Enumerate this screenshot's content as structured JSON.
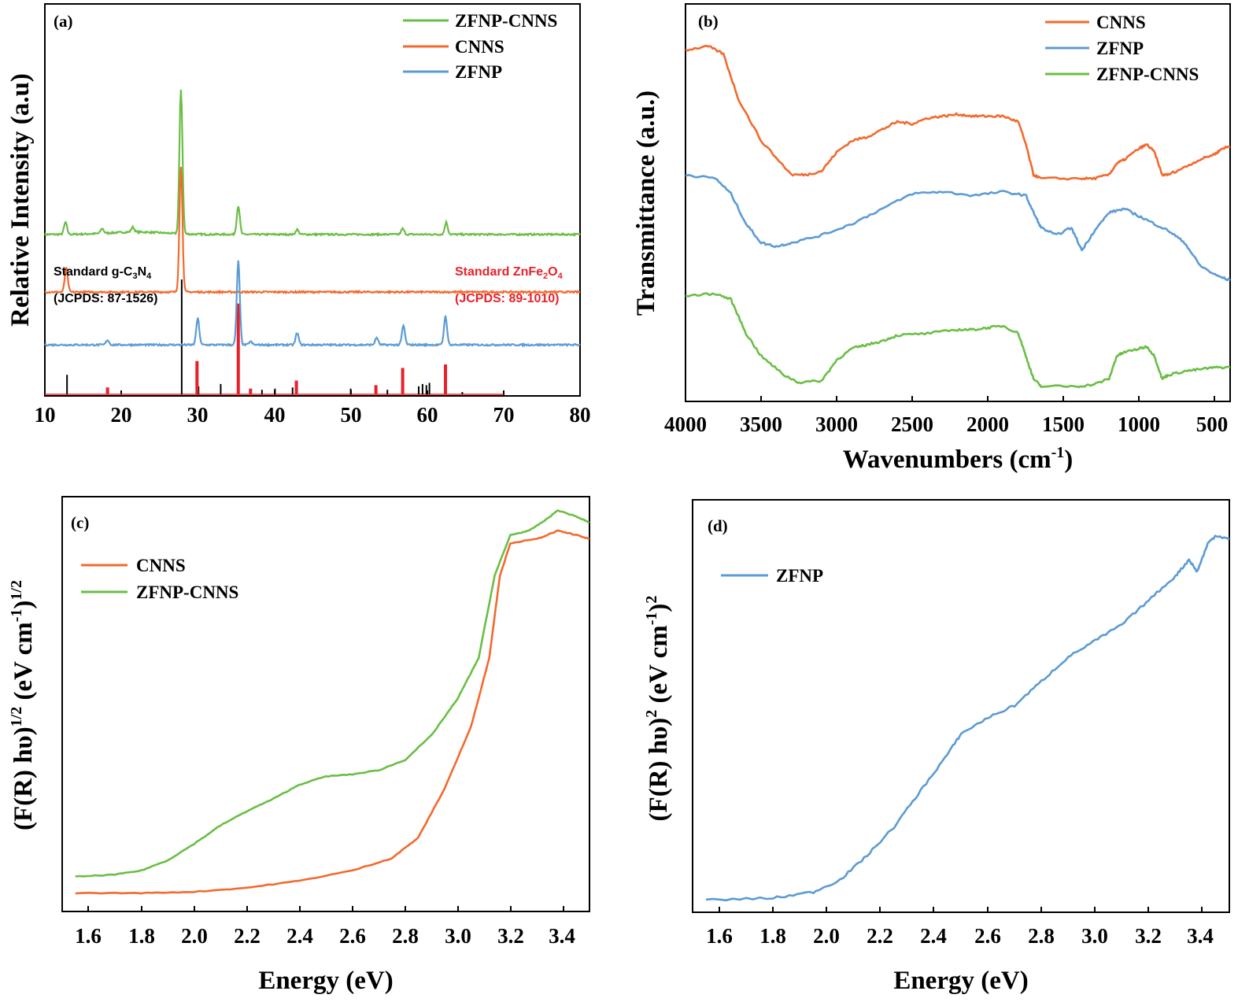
{
  "chart_data": [
    {
      "panel": "(a)",
      "type": "line",
      "xlabel": "",
      "ylabel": "Relative Intensity (a.u)",
      "xlim": [
        10,
        80
      ],
      "xticks": [
        "10",
        "20",
        "30",
        "40",
        "50",
        "60",
        "70",
        "80"
      ],
      "colors": {
        "ZFNP-CNNS": "#6ABE45",
        "CNNS": "#F26A2E",
        "ZFNP": "#5B9BD5",
        "std_gC3N4": "#000000",
        "std_ZnFe2O4": "#E8202A"
      },
      "legend": [
        "ZFNP-CNNS",
        "CNNS",
        "ZFNP"
      ],
      "series": [
        {
          "name": "ZFNP-CNNS",
          "baseline": 3.2,
          "peaks": [
            [
              12.7,
              0.25
            ],
            [
              17.5,
              0.1
            ],
            [
              21.5,
              0.1
            ],
            [
              27.8,
              3.0
            ],
            [
              35.3,
              0.6
            ],
            [
              43.0,
              0.1
            ],
            [
              56.8,
              0.12
            ],
            [
              62.5,
              0.25
            ]
          ]
        },
        {
          "name": "CNNS",
          "baseline": 2.0,
          "peaks": [
            [
              12.8,
              0.5
            ],
            [
              27.8,
              2.6
            ]
          ]
        },
        {
          "name": "ZFNP",
          "baseline": 0.9,
          "peaks": [
            [
              18.2,
              0.1
            ],
            [
              30.0,
              0.55
            ],
            [
              35.3,
              1.75
            ],
            [
              36.9,
              0.07
            ],
            [
              43.0,
              0.25
            ],
            [
              53.4,
              0.15
            ],
            [
              56.9,
              0.4
            ],
            [
              62.4,
              0.6
            ]
          ]
        }
      ],
      "reference_gC3N4": {
        "label_prefix": "Standard g-C",
        "sub1": "3",
        "mid": "N",
        "sub2": "4",
        "card": "(JCPDS: 87-1526)",
        "lines": [
          [
            12.9,
            0.17
          ],
          [
            27.9,
            1.0
          ],
          [
            30.1,
            0.07
          ],
          [
            33.0,
            0.09
          ],
          [
            35.3,
            0.05
          ],
          [
            38.4,
            0.04
          ],
          [
            40.1,
            0.05
          ],
          [
            42.4,
            0.06
          ],
          [
            50.0,
            0.05
          ],
          [
            54.8,
            0.04
          ],
          [
            58.9,
            0.07
          ],
          [
            59.4,
            0.09
          ],
          [
            59.9,
            0.08
          ],
          [
            60.3,
            0.1
          ],
          [
            64.6,
            0.02
          ]
        ]
      },
      "reference_ZnFe2O4": {
        "label_prefix": "Standard ZnFe",
        "sub1": "2",
        "mid": "O",
        "sub2": "4",
        "card": "(JCPDS: 89-1010)",
        "lines": [
          [
            18.2,
            0.06
          ],
          [
            29.9,
            0.29
          ],
          [
            35.3,
            0.79
          ],
          [
            36.9,
            0.05
          ],
          [
            42.9,
            0.12
          ],
          [
            53.3,
            0.08
          ],
          [
            56.8,
            0.23
          ],
          [
            62.4,
            0.26
          ]
        ]
      }
    },
    {
      "panel": "(b)",
      "type": "line",
      "xlabel_base": "Wavenumbers (cm",
      "xlabel_sup": "-1",
      "xlabel_close": ")",
      "ylabel": "Transmittance (a.u.)",
      "xlim": [
        4000,
        400
      ],
      "xticks": [
        "4000",
        "3500",
        "3000",
        "2500",
        "2000",
        "1500",
        "1000",
        "500"
      ],
      "colors": {
        "CNNS": "#F26A2E",
        "ZFNP": "#5B9BD5",
        "ZFNP-CNNS": "#6ABE45"
      },
      "legend": [
        "CNNS",
        "ZFNP",
        "ZFNP-CNNS"
      ],
      "series": [
        {
          "name": "CNNS",
          "points": [
            [
              4000,
              0.93
            ],
            [
              3850,
              0.94
            ],
            [
              3750,
              0.92
            ],
            [
              3650,
              0.8
            ],
            [
              3500,
              0.69
            ],
            [
              3300,
              0.6
            ],
            [
              3200,
              0.6
            ],
            [
              3100,
              0.61
            ],
            [
              3000,
              0.66
            ],
            [
              2900,
              0.69
            ],
            [
              2800,
              0.7
            ],
            [
              2700,
              0.72
            ],
            [
              2600,
              0.74
            ],
            [
              2500,
              0.735
            ],
            [
              2400,
              0.75
            ],
            [
              2300,
              0.755
            ],
            [
              2200,
              0.76
            ],
            [
              2100,
              0.755
            ],
            [
              2000,
              0.755
            ],
            [
              1900,
              0.755
            ],
            [
              1800,
              0.74
            ],
            [
              1750,
              0.68
            ],
            [
              1700,
              0.6
            ],
            [
              1650,
              0.59
            ],
            [
              1400,
              0.59
            ],
            [
              1300,
              0.59
            ],
            [
              1200,
              0.6
            ],
            [
              1150,
              0.63
            ],
            [
              1100,
              0.64
            ],
            [
              1000,
              0.67
            ],
            [
              950,
              0.68
            ],
            [
              900,
              0.66
            ],
            [
              850,
              0.6
            ],
            [
              810,
              0.6
            ],
            [
              700,
              0.62
            ],
            [
              600,
              0.64
            ],
            [
              500,
              0.655
            ],
            [
              450,
              0.67
            ],
            [
              400,
              0.675
            ]
          ]
        },
        {
          "name": "ZFNP",
          "points": [
            [
              4000,
              0.6
            ],
            [
              3800,
              0.59
            ],
            [
              3700,
              0.55
            ],
            [
              3600,
              0.47
            ],
            [
              3500,
              0.42
            ],
            [
              3400,
              0.41
            ],
            [
              3300,
              0.42
            ],
            [
              3100,
              0.44
            ],
            [
              2900,
              0.47
            ],
            [
              2700,
              0.51
            ],
            [
              2500,
              0.55
            ],
            [
              2300,
              0.555
            ],
            [
              2100,
              0.545
            ],
            [
              1900,
              0.555
            ],
            [
              1750,
              0.545
            ],
            [
              1700,
              0.5
            ],
            [
              1650,
              0.46
            ],
            [
              1550,
              0.44
            ],
            [
              1450,
              0.46
            ],
            [
              1380,
              0.4
            ],
            [
              1300,
              0.45
            ],
            [
              1200,
              0.5
            ],
            [
              1100,
              0.51
            ],
            [
              1000,
              0.49
            ],
            [
              900,
              0.47
            ],
            [
              800,
              0.45
            ],
            [
              700,
              0.42
            ],
            [
              600,
              0.36
            ],
            [
              500,
              0.335
            ],
            [
              400,
              0.32
            ]
          ]
        },
        {
          "name": "ZFNP-CNNS",
          "points": [
            [
              4000,
              0.28
            ],
            [
              3800,
              0.285
            ],
            [
              3700,
              0.27
            ],
            [
              3600,
              0.18
            ],
            [
              3500,
              0.12
            ],
            [
              3350,
              0.07
            ],
            [
              3250,
              0.05
            ],
            [
              3100,
              0.055
            ],
            [
              3000,
              0.11
            ],
            [
              2900,
              0.14
            ],
            [
              2800,
              0.15
            ],
            [
              2700,
              0.16
            ],
            [
              2600,
              0.175
            ],
            [
              2400,
              0.18
            ],
            [
              2200,
              0.19
            ],
            [
              2100,
              0.19
            ],
            [
              2000,
              0.195
            ],
            [
              1900,
              0.2
            ],
            [
              1800,
              0.18
            ],
            [
              1750,
              0.12
            ],
            [
              1700,
              0.06
            ],
            [
              1650,
              0.04
            ],
            [
              1400,
              0.04
            ],
            [
              1300,
              0.045
            ],
            [
              1200,
              0.06
            ],
            [
              1150,
              0.12
            ],
            [
              1100,
              0.13
            ],
            [
              1000,
              0.14
            ],
            [
              950,
              0.145
            ],
            [
              900,
              0.12
            ],
            [
              850,
              0.06
            ],
            [
              810,
              0.07
            ],
            [
              700,
              0.08
            ],
            [
              600,
              0.085
            ],
            [
              500,
              0.09
            ],
            [
              400,
              0.09
            ]
          ]
        }
      ]
    },
    {
      "panel": "(c)",
      "type": "line",
      "xlabel": "Energy (eV)",
      "ylabel_base": "(F(R) hυ)",
      "ylabel_sup1": "1/2",
      "ylabel_mid": " (eV cm",
      "ylabel_sup2": "-1",
      "ylabel_close": ")",
      "ylabel_sup3": "1/2",
      "xlim": [
        1.5,
        3.5
      ],
      "xticks": [
        "1.6",
        "1.8",
        "2.0",
        "2.2",
        "2.4",
        "2.6",
        "2.8",
        "3.0",
        "3.2",
        "3.4"
      ],
      "colors": {
        "CNNS": "#F26A2E",
        "ZFNP-CNNS": "#6ABE45"
      },
      "legend": [
        "CNNS",
        "ZFNP-CNNS"
      ],
      "series": [
        {
          "name": "CNNS",
          "points": [
            [
              1.55,
              0.045
            ],
            [
              1.8,
              0.045
            ],
            [
              2.0,
              0.048
            ],
            [
              2.2,
              0.058
            ],
            [
              2.4,
              0.075
            ],
            [
              2.6,
              0.1
            ],
            [
              2.75,
              0.13
            ],
            [
              2.85,
              0.18
            ],
            [
              2.95,
              0.3
            ],
            [
              3.05,
              0.45
            ],
            [
              3.12,
              0.62
            ],
            [
              3.16,
              0.82
            ],
            [
              3.2,
              0.9
            ],
            [
              3.3,
              0.91
            ],
            [
              3.38,
              0.93
            ],
            [
              3.45,
              0.92
            ],
            [
              3.5,
              0.91
            ]
          ]
        },
        {
          "name": "ZFNP-CNNS",
          "points": [
            [
              1.55,
              0.085
            ],
            [
              1.7,
              0.09
            ],
            [
              1.8,
              0.1
            ],
            [
              1.9,
              0.125
            ],
            [
              2.0,
              0.165
            ],
            [
              2.1,
              0.21
            ],
            [
              2.2,
              0.245
            ],
            [
              2.3,
              0.275
            ],
            [
              2.4,
              0.31
            ],
            [
              2.5,
              0.33
            ],
            [
              2.6,
              0.335
            ],
            [
              2.7,
              0.345
            ],
            [
              2.8,
              0.37
            ],
            [
              2.9,
              0.43
            ],
            [
              3.0,
              0.52
            ],
            [
              3.08,
              0.62
            ],
            [
              3.14,
              0.82
            ],
            [
              3.2,
              0.92
            ],
            [
              3.27,
              0.93
            ],
            [
              3.33,
              0.955
            ],
            [
              3.38,
              0.98
            ],
            [
              3.45,
              0.965
            ],
            [
              3.5,
              0.95
            ]
          ]
        }
      ]
    },
    {
      "panel": "(d)",
      "type": "line",
      "xlabel": "Energy (eV)",
      "ylabel_base": "(F(R) hυ)",
      "ylabel_sup1": "2",
      "ylabel_mid": " (eV cm",
      "ylabel_sup2": "-1",
      "ylabel_close": ")",
      "ylabel_sup3": "2",
      "xlim": [
        1.5,
        3.5
      ],
      "xticks": [
        "1.6",
        "1.8",
        "2.0",
        "2.2",
        "2.4",
        "2.6",
        "2.8",
        "3.0",
        "3.2",
        "3.4"
      ],
      "colors": {
        "ZFNP": "#5B9BD5"
      },
      "legend": [
        "ZFNP"
      ],
      "series": [
        {
          "name": "ZFNP",
          "points": [
            [
              1.55,
              0.03
            ],
            [
              1.8,
              0.035
            ],
            [
              1.95,
              0.05
            ],
            [
              2.05,
              0.08
            ],
            [
              2.15,
              0.14
            ],
            [
              2.25,
              0.21
            ],
            [
              2.35,
              0.3
            ],
            [
              2.45,
              0.39
            ],
            [
              2.5,
              0.44
            ],
            [
              2.6,
              0.48
            ],
            [
              2.7,
              0.51
            ],
            [
              2.8,
              0.57
            ],
            [
              2.9,
              0.63
            ],
            [
              3.0,
              0.67
            ],
            [
              3.1,
              0.71
            ],
            [
              3.2,
              0.77
            ],
            [
              3.3,
              0.83
            ],
            [
              3.35,
              0.87
            ],
            [
              3.38,
              0.84
            ],
            [
              3.42,
              0.91
            ],
            [
              3.45,
              0.93
            ],
            [
              3.5,
              0.92
            ]
          ]
        }
      ]
    }
  ]
}
